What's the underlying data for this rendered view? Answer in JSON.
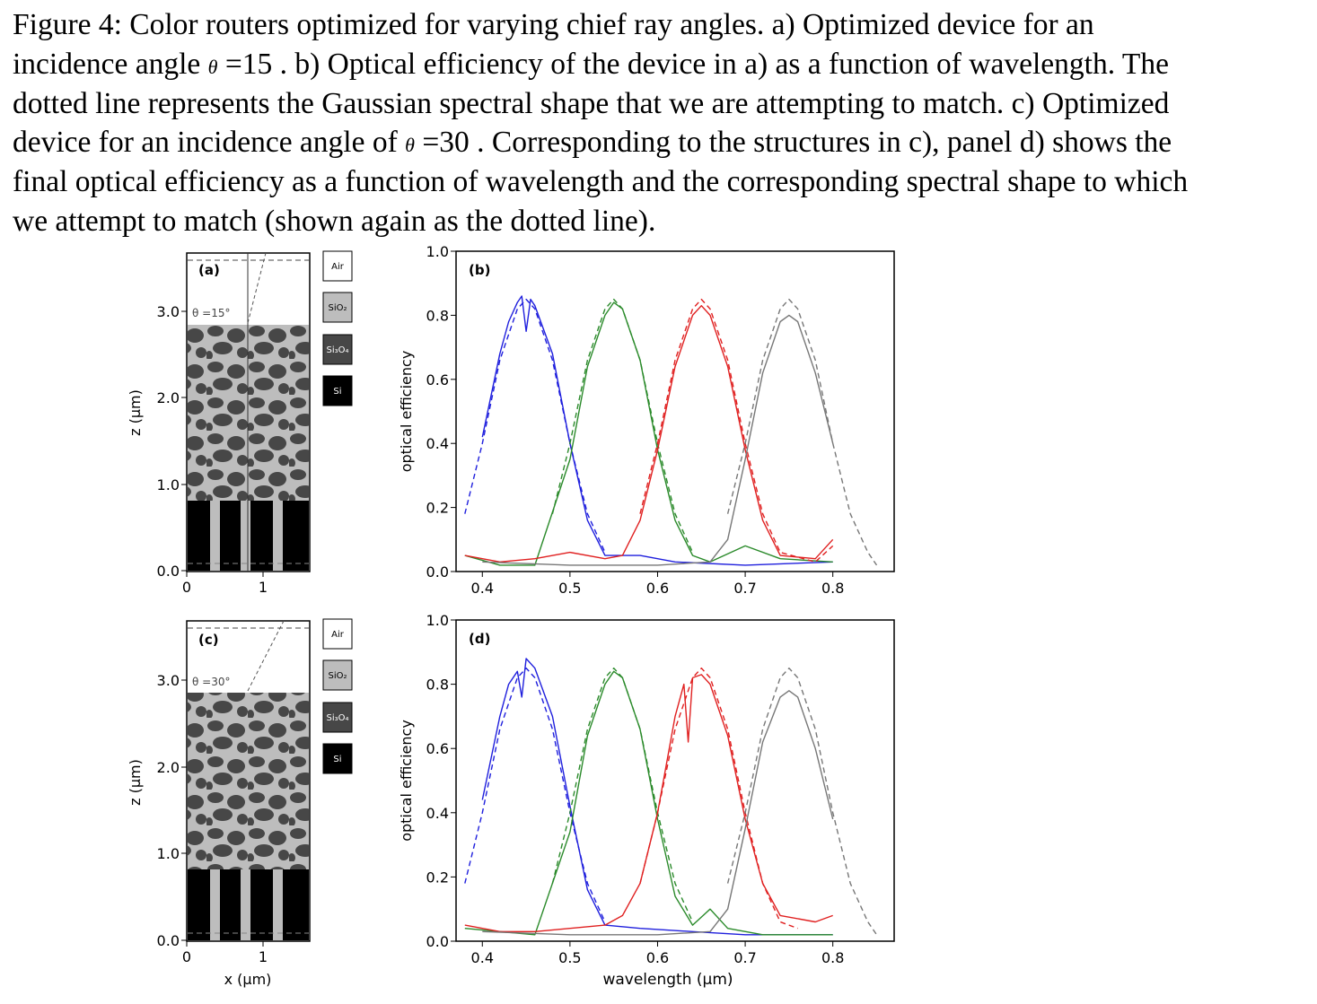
{
  "caption": {
    "l1": "Figure 4: Color routers optimized for varying chief ray angles. a) Optimized device for an",
    "l2a": "incidence angle ",
    "theta": "θ",
    "l2b": " =15   . b) Optical efficiency of the device in a) as a function of wavelength. The",
    "l3": "dotted line represents the Gaussian spectral shape that we are attempting to match. c) Optimized",
    "l4a": "device for an incidence angle of ",
    "l4b": " =30   . Corresponding to the structures in c), panel d) shows the",
    "l5": "final optical efficiency as a function of wavelength and the corresponding spectral shape to which",
    "l6": "we attempt to match (shown again as the dotted line)."
  },
  "device": {
    "ylabel": "z (μm)",
    "xlabel": "x (μm)",
    "yticks": [
      "0.0",
      "1.0",
      "2.0",
      "3.0"
    ],
    "xticks": [
      "0",
      "1"
    ],
    "panels": [
      {
        "label": "(a)",
        "angle": "θ =15°"
      },
      {
        "label": "(c)",
        "angle": "θ =30°"
      }
    ],
    "legend": [
      "Air",
      "SiO₂",
      "Si₃O₄",
      "Si"
    ]
  },
  "chart_data": [
    {
      "type": "line",
      "panel": "(b)",
      "ylabel": "optical efficiency",
      "xlabel": "",
      "xlim": [
        0.37,
        0.87
      ],
      "ylim": [
        0.0,
        1.0
      ],
      "xticks": [
        "0.4",
        "0.5",
        "0.6",
        "0.7",
        "0.8"
      ],
      "yticks": [
        "0.0",
        "0.2",
        "0.4",
        "0.6",
        "0.8",
        "1.0"
      ],
      "series": [
        {
          "color": "#1f1fdd",
          "style": "dashed",
          "x": [
            0.38,
            0.4,
            0.42,
            0.44,
            0.45,
            0.46,
            0.48,
            0.5,
            0.52,
            0.54
          ],
          "y": [
            0.18,
            0.4,
            0.66,
            0.82,
            0.85,
            0.82,
            0.66,
            0.4,
            0.18,
            0.06
          ]
        },
        {
          "color": "#1f1fdd",
          "style": "solid",
          "x": [
            0.4,
            0.42,
            0.43,
            0.44,
            0.445,
            0.45,
            0.455,
            0.46,
            0.48,
            0.5,
            0.52,
            0.54,
            0.58,
            0.62,
            0.7,
            0.8
          ],
          "y": [
            0.42,
            0.68,
            0.78,
            0.84,
            0.86,
            0.75,
            0.85,
            0.83,
            0.68,
            0.4,
            0.16,
            0.05,
            0.05,
            0.03,
            0.02,
            0.03
          ]
        },
        {
          "color": "#2a8a2a",
          "style": "dashed",
          "x": [
            0.48,
            0.5,
            0.52,
            0.54,
            0.55,
            0.56,
            0.58,
            0.6,
            0.62,
            0.64
          ],
          "y": [
            0.18,
            0.4,
            0.66,
            0.82,
            0.85,
            0.82,
            0.66,
            0.4,
            0.18,
            0.06
          ]
        },
        {
          "color": "#2a8a2a",
          "style": "solid",
          "x": [
            0.38,
            0.42,
            0.46,
            0.5,
            0.52,
            0.54,
            0.55,
            0.56,
            0.58,
            0.6,
            0.62,
            0.64,
            0.66,
            0.7,
            0.74,
            0.8
          ],
          "y": [
            0.05,
            0.02,
            0.02,
            0.35,
            0.64,
            0.8,
            0.84,
            0.82,
            0.66,
            0.38,
            0.16,
            0.05,
            0.03,
            0.08,
            0.04,
            0.03
          ]
        },
        {
          "color": "#e02020",
          "style": "dashed",
          "x": [
            0.58,
            0.6,
            0.62,
            0.64,
            0.65,
            0.66,
            0.68,
            0.7,
            0.72,
            0.74,
            0.78,
            0.8
          ],
          "y": [
            0.18,
            0.4,
            0.66,
            0.82,
            0.85,
            0.82,
            0.66,
            0.4,
            0.18,
            0.06,
            0.03,
            0.08
          ]
        },
        {
          "color": "#e02020",
          "style": "solid",
          "x": [
            0.38,
            0.42,
            0.46,
            0.5,
            0.54,
            0.56,
            0.58,
            0.6,
            0.62,
            0.64,
            0.65,
            0.66,
            0.68,
            0.7,
            0.72,
            0.74,
            0.78,
            0.8
          ],
          "y": [
            0.05,
            0.03,
            0.04,
            0.06,
            0.04,
            0.05,
            0.16,
            0.38,
            0.64,
            0.8,
            0.83,
            0.8,
            0.64,
            0.38,
            0.16,
            0.05,
            0.04,
            0.1
          ]
        },
        {
          "color": "#777777",
          "style": "dashed",
          "x": [
            0.68,
            0.7,
            0.72,
            0.74,
            0.75,
            0.76,
            0.78,
            0.8,
            0.82,
            0.84,
            0.85
          ],
          "y": [
            0.18,
            0.4,
            0.66,
            0.82,
            0.85,
            0.82,
            0.66,
            0.4,
            0.18,
            0.06,
            0.02
          ]
        },
        {
          "color": "#777777",
          "style": "solid",
          "x": [
            0.4,
            0.5,
            0.6,
            0.66,
            0.68,
            0.7,
            0.72,
            0.74,
            0.75,
            0.76,
            0.78,
            0.8
          ],
          "y": [
            0.03,
            0.02,
            0.02,
            0.03,
            0.1,
            0.35,
            0.62,
            0.78,
            0.8,
            0.78,
            0.62,
            0.4
          ]
        }
      ]
    },
    {
      "type": "line",
      "panel": "(d)",
      "ylabel": "optical efficiency",
      "xlabel": "wavelength (μm)",
      "xlim": [
        0.37,
        0.87
      ],
      "ylim": [
        0.0,
        1.0
      ],
      "xticks": [
        "0.4",
        "0.5",
        "0.6",
        "0.7",
        "0.8"
      ],
      "yticks": [
        "0.0",
        "0.2",
        "0.4",
        "0.6",
        "0.8",
        "1.0"
      ],
      "series": [
        {
          "color": "#1f1fdd",
          "style": "dashed",
          "x": [
            0.38,
            0.4,
            0.42,
            0.44,
            0.45,
            0.46,
            0.48,
            0.5,
            0.52,
            0.54
          ],
          "y": [
            0.18,
            0.4,
            0.66,
            0.82,
            0.85,
            0.82,
            0.66,
            0.4,
            0.18,
            0.06
          ]
        },
        {
          "color": "#1f1fdd",
          "style": "solid",
          "x": [
            0.4,
            0.42,
            0.43,
            0.44,
            0.445,
            0.45,
            0.46,
            0.48,
            0.5,
            0.52,
            0.54,
            0.58,
            0.64,
            0.7,
            0.8
          ],
          "y": [
            0.44,
            0.7,
            0.8,
            0.84,
            0.76,
            0.88,
            0.85,
            0.7,
            0.42,
            0.16,
            0.05,
            0.04,
            0.03,
            0.02,
            0.02
          ]
        },
        {
          "color": "#2a8a2a",
          "style": "dashed",
          "x": [
            0.48,
            0.5,
            0.52,
            0.54,
            0.55,
            0.56,
            0.58,
            0.6,
            0.62,
            0.64
          ],
          "y": [
            0.18,
            0.4,
            0.66,
            0.82,
            0.85,
            0.82,
            0.66,
            0.4,
            0.18,
            0.06
          ]
        },
        {
          "color": "#2a8a2a",
          "style": "solid",
          "x": [
            0.38,
            0.42,
            0.46,
            0.5,
            0.52,
            0.54,
            0.55,
            0.56,
            0.58,
            0.6,
            0.62,
            0.64,
            0.66,
            0.68,
            0.72,
            0.8
          ],
          "y": [
            0.04,
            0.03,
            0.02,
            0.34,
            0.64,
            0.8,
            0.84,
            0.82,
            0.66,
            0.38,
            0.14,
            0.05,
            0.1,
            0.04,
            0.02,
            0.02
          ]
        },
        {
          "color": "#e02020",
          "style": "dashed",
          "x": [
            0.58,
            0.6,
            0.62,
            0.64,
            0.65,
            0.66,
            0.68,
            0.7,
            0.72,
            0.74,
            0.76
          ],
          "y": [
            0.18,
            0.4,
            0.66,
            0.82,
            0.85,
            0.82,
            0.66,
            0.4,
            0.18,
            0.06,
            0.04
          ]
        },
        {
          "color": "#e02020",
          "style": "solid",
          "x": [
            0.38,
            0.42,
            0.46,
            0.5,
            0.54,
            0.56,
            0.58,
            0.6,
            0.62,
            0.63,
            0.635,
            0.64,
            0.65,
            0.66,
            0.68,
            0.7,
            0.72,
            0.74,
            0.78,
            0.8
          ],
          "y": [
            0.05,
            0.03,
            0.03,
            0.04,
            0.05,
            0.08,
            0.18,
            0.4,
            0.7,
            0.8,
            0.62,
            0.82,
            0.83,
            0.8,
            0.64,
            0.38,
            0.18,
            0.08,
            0.06,
            0.08
          ]
        },
        {
          "color": "#777777",
          "style": "dashed",
          "x": [
            0.68,
            0.7,
            0.72,
            0.74,
            0.75,
            0.76,
            0.78,
            0.8,
            0.82,
            0.84,
            0.85
          ],
          "y": [
            0.18,
            0.4,
            0.66,
            0.82,
            0.85,
            0.82,
            0.66,
            0.4,
            0.18,
            0.06,
            0.02
          ]
        },
        {
          "color": "#777777",
          "style": "solid",
          "x": [
            0.4,
            0.5,
            0.6,
            0.66,
            0.68,
            0.7,
            0.72,
            0.74,
            0.75,
            0.76,
            0.78,
            0.8
          ],
          "y": [
            0.03,
            0.02,
            0.02,
            0.03,
            0.1,
            0.35,
            0.62,
            0.76,
            0.78,
            0.76,
            0.6,
            0.38
          ]
        }
      ]
    }
  ]
}
